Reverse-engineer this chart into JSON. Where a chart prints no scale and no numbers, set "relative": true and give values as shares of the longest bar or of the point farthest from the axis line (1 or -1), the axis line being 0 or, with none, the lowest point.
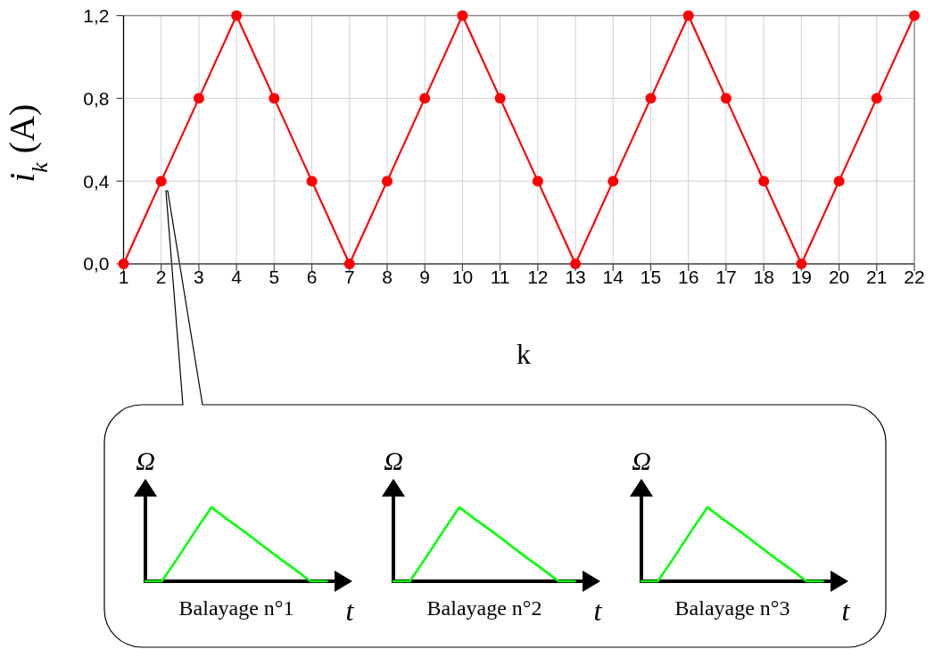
{
  "chart_data": [
    {
      "type": "line",
      "x": [
        1,
        2,
        3,
        4,
        5,
        6,
        7,
        8,
        9,
        10,
        11,
        12,
        13,
        14,
        15,
        16,
        17,
        18,
        19,
        20,
        21,
        22
      ],
      "values": [
        0,
        0.4,
        0.8,
        1.2,
        0.8,
        0.4,
        0,
        0.4,
        0.8,
        1.2,
        0.8,
        0.4,
        0,
        0.4,
        0.8,
        1.2,
        0.8,
        0.4,
        0,
        0.4,
        0.8,
        1.2
      ],
      "color": "#ff0000",
      "marker": "circle",
      "line_style": "solid",
      "grid": true,
      "xlim": [
        1,
        22
      ],
      "xticks": [
        1,
        2,
        3,
        4,
        5,
        6,
        7,
        8,
        9,
        10,
        11,
        12,
        13,
        14,
        15,
        16,
        17,
        18,
        19,
        20,
        21,
        22
      ],
      "ylim": [
        0,
        1.2
      ],
      "yticks": [
        {
          "value": 0,
          "label": "0,0"
        },
        {
          "value": 0.4,
          "label": "0,4"
        },
        {
          "value": 0.8,
          "label": "0,8"
        },
        {
          "value": 1.2,
          "label": "1,2"
        }
      ],
      "xlabel": "k",
      "ylabel": "i$_{k}$ (A)"
    },
    {
      "type": "line",
      "relative": true,
      "categories": [
        null,
        null,
        null,
        null,
        null,
        null,
        null,
        null,
        null,
        null,
        null,
        null
      ],
      "values": [
        0,
        0,
        0.33,
        0.67,
        1,
        0.83,
        0.67,
        0.5,
        0.33,
        0.17,
        0,
        0
      ],
      "color": "#00ff00",
      "xlabel": "t",
      "ylabel": "Ω",
      "annotations": [
        "Balayage n°1"
      ]
    },
    {
      "type": "line",
      "relative": true,
      "categories": [
        null,
        null,
        null,
        null,
        null,
        null,
        null,
        null,
        null,
        null,
        null,
        null
      ],
      "values": [
        0,
        0,
        0.33,
        0.67,
        1,
        0.83,
        0.67,
        0.5,
        0.33,
        0.17,
        0,
        0
      ],
      "color": "#00ff00",
      "xlabel": "t",
      "ylabel": "Ω",
      "annotations": [
        "Balayage n°2"
      ]
    },
    {
      "type": "line",
      "relative": true,
      "categories": [
        null,
        null,
        null,
        null,
        null,
        null,
        null,
        null,
        null,
        null,
        null,
        null
      ],
      "values": [
        0,
        0,
        0.33,
        0.67,
        1,
        0.83,
        0.67,
        0.5,
        0.33,
        0.17,
        0,
        0
      ],
      "color": "#00ff00",
      "xlabel": "t",
      "ylabel": "Ω",
      "annotations": [
        "Balayage n°3"
      ]
    }
  ]
}
